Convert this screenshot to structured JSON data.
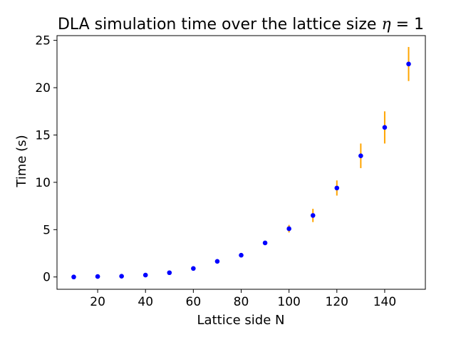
{
  "chart_data": {
    "type": "scatter",
    "title": "DLA simulation time over the lattice size",
    "title_math_symbol": "η",
    "title_math_rest": " = 1",
    "xlabel": "Lattice side N",
    "ylabel": "Time (s)",
    "xlim": [
      3,
      157
    ],
    "ylim": [
      -1.3,
      25.5
    ],
    "xticks": [
      20,
      40,
      60,
      80,
      100,
      120,
      140
    ],
    "yticks": [
      0,
      5,
      10,
      15,
      20,
      25
    ],
    "grid": false,
    "colors": {
      "marker": "#0000ff",
      "errorbar": "#ffa500",
      "axes": "#000000"
    },
    "series": [
      {
        "x": [
          10,
          20,
          30,
          40,
          50,
          60,
          70,
          80,
          90,
          100,
          110,
          120,
          130,
          140,
          150
        ],
        "y": [
          0.0,
          0.05,
          0.08,
          0.2,
          0.45,
          0.9,
          1.65,
          2.3,
          3.6,
          5.1,
          6.5,
          9.4,
          12.8,
          15.8,
          22.5
        ],
        "yerr": [
          0.02,
          0.03,
          0.04,
          0.06,
          0.08,
          0.1,
          0.12,
          0.15,
          0.2,
          0.4,
          0.7,
          0.8,
          1.3,
          1.7,
          1.8
        ]
      }
    ]
  }
}
